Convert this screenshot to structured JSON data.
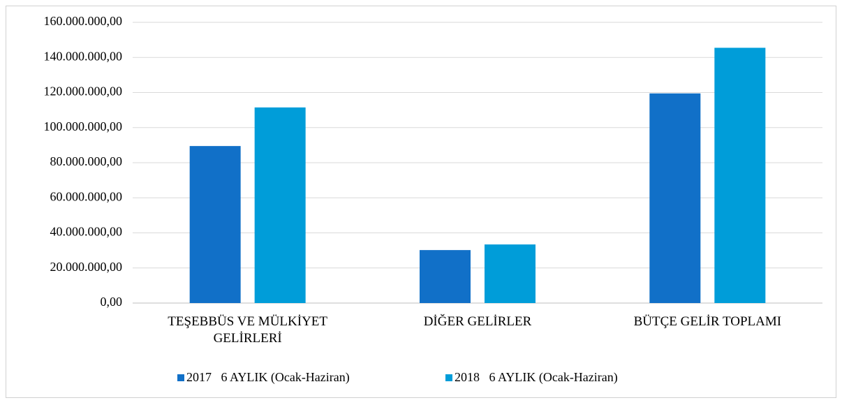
{
  "chart_data": {
    "type": "bar",
    "categories": [
      "TEŞEBBÜS VE MÜLKİYET GELİRLERİ",
      "DİĞER GELİRLER",
      "BÜTÇE GELİR TOPLAMI"
    ],
    "series": [
      {
        "name": "2017   6 AYLIK (Ocak-Haziran)",
        "color": "#1170c8",
        "values": [
          89500000,
          30200000,
          119500000
        ]
      },
      {
        "name": "2018   6 AYLIK (Ocak-Haziran)",
        "color": "#009dd9",
        "values": [
          111500000,
          33400000,
          145500000
        ]
      }
    ],
    "ylim": [
      0,
      160000000
    ],
    "yticks": [
      {
        "value": 0,
        "label": "0,00"
      },
      {
        "value": 20000000,
        "label": "20.000.000,00"
      },
      {
        "value": 40000000,
        "label": "40.000.000,00"
      },
      {
        "value": 60000000,
        "label": "60.000.000,00"
      },
      {
        "value": 80000000,
        "label": "80.000.000,00"
      },
      {
        "value": 100000000,
        "label": "100.000.000,00"
      },
      {
        "value": 120000000,
        "label": "120.000.000,00"
      },
      {
        "value": 140000000,
        "label": "140.000.000,00"
      },
      {
        "value": 160000000,
        "label": "160.000.000,00"
      }
    ],
    "grid": true,
    "legend": "bottom"
  }
}
